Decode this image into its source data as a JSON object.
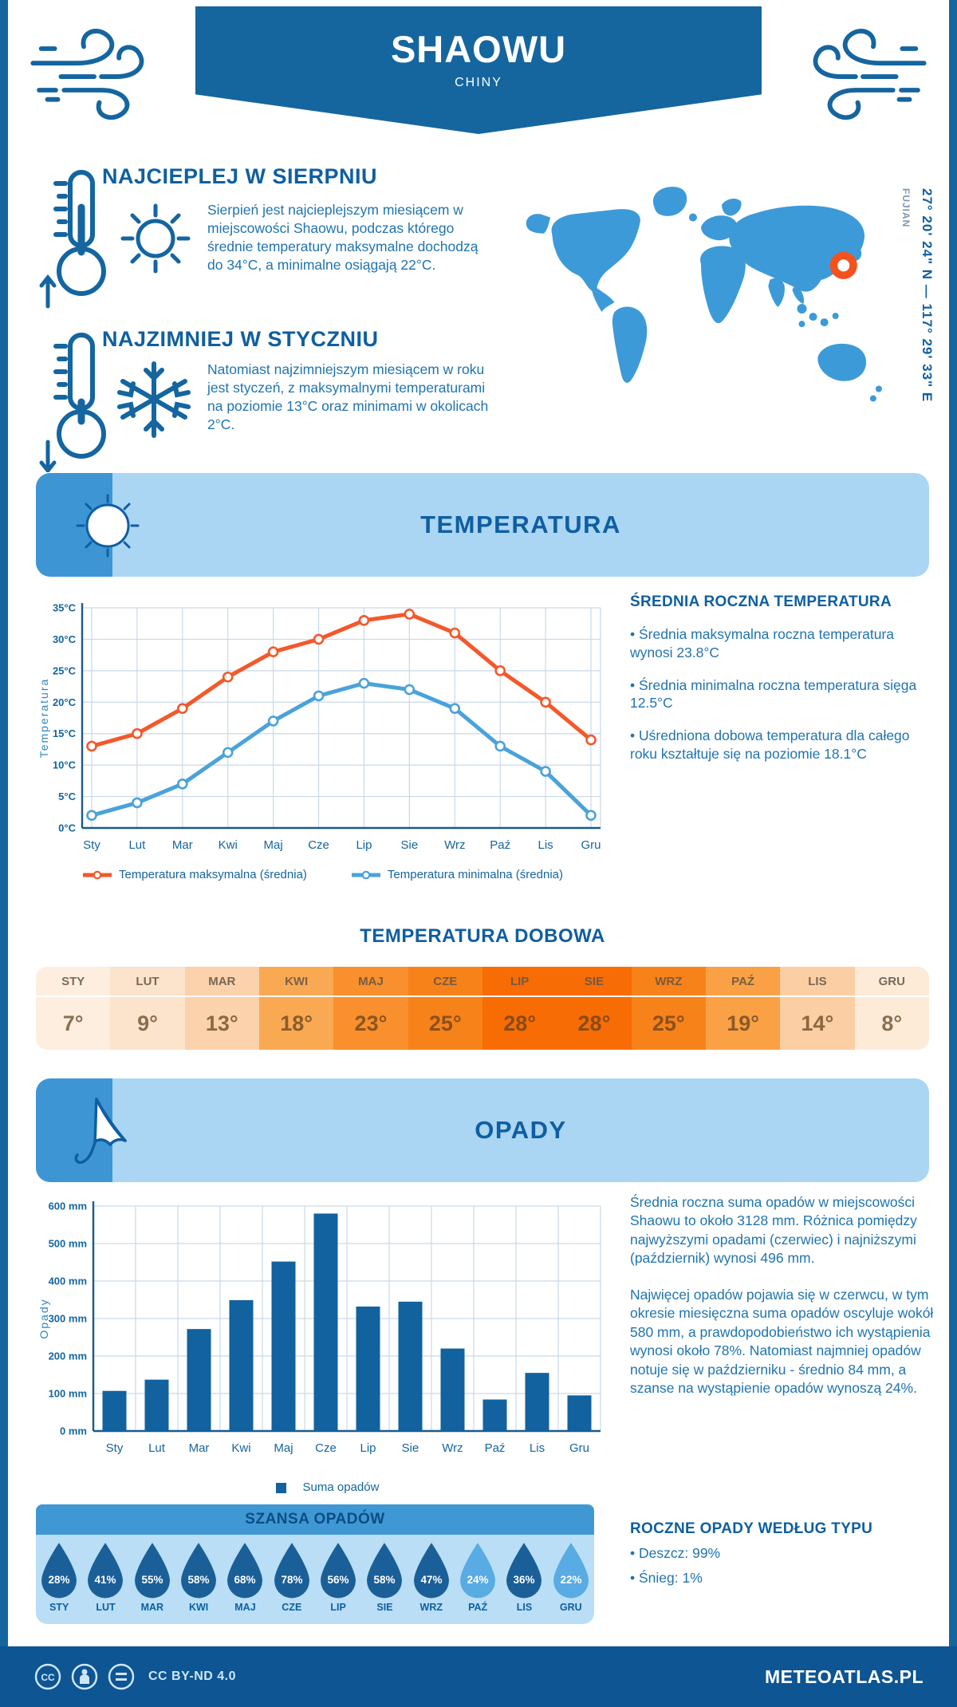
{
  "header": {
    "title": "SHAOWU",
    "subtitle": "CHINY"
  },
  "highlights": [
    {
      "title": "NAJCIEPLEJ W SIERPNIU",
      "text": "Sierpień jest najcieplejszym miesiącem w miejscowości Shaowu, podczas którego średnie temperatury maksymalne dochodzą do 34°C, a minimalne osiągają 22°C."
    },
    {
      "title": "NAJZIMNIEJ W STYCZNIU",
      "text": "Natomiast najzimniejszym miesiącem w roku jest styczeń, z maksymalnymi temperaturami na poziomie 13°C oraz minimami w okolicach 2°C."
    }
  ],
  "map": {
    "region": "FUJIAN",
    "coordinates": "27° 20' 24\" N — 117° 29' 33\" E"
  },
  "sections": {
    "temperature": "TEMPERATURA",
    "precipitation": "OPADY"
  },
  "annual": {
    "title": "ŚREDNIA ROCZNA TEMPERATURA",
    "bullets": [
      "Średnia maksymalna roczna temperatura wynosi 23.8°C",
      "Średnia minimalna roczna temperatura sięga 12.5°C",
      "Uśredniona dobowa temperatura dla całego roku kształtuje się na poziomie 18.1°C"
    ]
  },
  "daily": {
    "title": "TEMPERATURA DOBOWA",
    "months": [
      "STY",
      "LUT",
      "MAR",
      "KWI",
      "MAJ",
      "CZE",
      "LIP",
      "SIE",
      "WRZ",
      "PAŹ",
      "LIS",
      "GRU"
    ],
    "values": [
      "7°",
      "9°",
      "13°",
      "18°",
      "23°",
      "25°",
      "28°",
      "28°",
      "25°",
      "19°",
      "14°",
      "8°"
    ],
    "colors": [
      "#fdeedf",
      "#fce3cb",
      "#fbd2ab",
      "#faa953",
      "#f98f2d",
      "#f8821a",
      "#f76c05",
      "#f76c05",
      "#f8821a",
      "#faa145",
      "#fbcfa3",
      "#fdebd8"
    ]
  },
  "precip": {
    "paragraphs": [
      "Średnia roczna suma opadów w miejscowości Shaowu to około 3128 mm. Różnica pomiędzy najwyższymi opadami (czerwiec) i najniższymi (październik) wynosi 496 mm.",
      "Najwięcej opadów pojawia się w czerwcu, w tym okresie miesięczna suma opadów oscyluje wokół 580 mm, a prawdopodobieństwo ich wystąpienia wynosi około 78%. Natomiast najmniej opadów notuje się w październiku - średnio 84 mm, a szanse na wystąpienie opadów wynoszą 24%."
    ],
    "types": {
      "title": "ROCZNE OPADY WEDŁUG TYPU",
      "bullets": [
        "Deszcz: 99%",
        "Śnieg: 1%"
      ]
    },
    "chance": {
      "title": "SZANSA OPADÓW",
      "months": [
        "STY",
        "LUT",
        "MAR",
        "KWI",
        "MAJ",
        "CZE",
        "LIP",
        "SIE",
        "WRZ",
        "PAŹ",
        "LIS",
        "GRU"
      ],
      "values": [
        "28%",
        "41%",
        "55%",
        "58%",
        "68%",
        "78%",
        "56%",
        "58%",
        "47%",
        "24%",
        "36%",
        "22%"
      ],
      "drop_colors": [
        "#1b5f98",
        "#1b5f98",
        "#1b5f98",
        "#1b5f98",
        "#1b5f98",
        "#1b5f98",
        "#1b5f98",
        "#1b5f98",
        "#1b5f98",
        "#58abe3",
        "#1b5f98",
        "#58abe3"
      ]
    }
  },
  "chart_data": [
    {
      "type": "line",
      "x": [
        "Sty",
        "Lut",
        "Mar",
        "Kwi",
        "Maj",
        "Cze",
        "Lip",
        "Sie",
        "Wrz",
        "Paź",
        "Lis",
        "Gru"
      ],
      "ylabel": "Temperatura",
      "ylim": [
        0,
        35
      ],
      "ystep": 5,
      "ytick_suffix": "°C",
      "grid": true,
      "legend_position": "bottom",
      "series": [
        {
          "name": "Temperatura maksymalna (średnia)",
          "color": "#f4582b",
          "values": [
            13,
            15,
            19,
            24,
            28,
            30,
            33,
            34,
            31,
            25,
            20,
            14
          ]
        },
        {
          "name": "Temperatura minimalna (średnia)",
          "color": "#4aa2da",
          "values": [
            2,
            4,
            7,
            12,
            17,
            21,
            23,
            22,
            19,
            13,
            9,
            2
          ]
        }
      ]
    },
    {
      "type": "bar",
      "x": [
        "Sty",
        "Lut",
        "Mar",
        "Kwi",
        "Maj",
        "Cze",
        "Lip",
        "Sie",
        "Wrz",
        "Paź",
        "Lis",
        "Gru"
      ],
      "ylabel": "Opady",
      "ylim": [
        0,
        600
      ],
      "ystep": 100,
      "ytick_suffix": " mm",
      "grid": true,
      "legend_position": "bottom",
      "series": [
        {
          "name": "Suma opadów",
          "color": "#11629f",
          "values": [
            107,
            137,
            272,
            349,
            452,
            580,
            332,
            345,
            220,
            84,
            155,
            95
          ]
        }
      ]
    }
  ],
  "footer": {
    "license": "CC BY-ND 4.0",
    "site": "METEOATLAS.PL"
  }
}
